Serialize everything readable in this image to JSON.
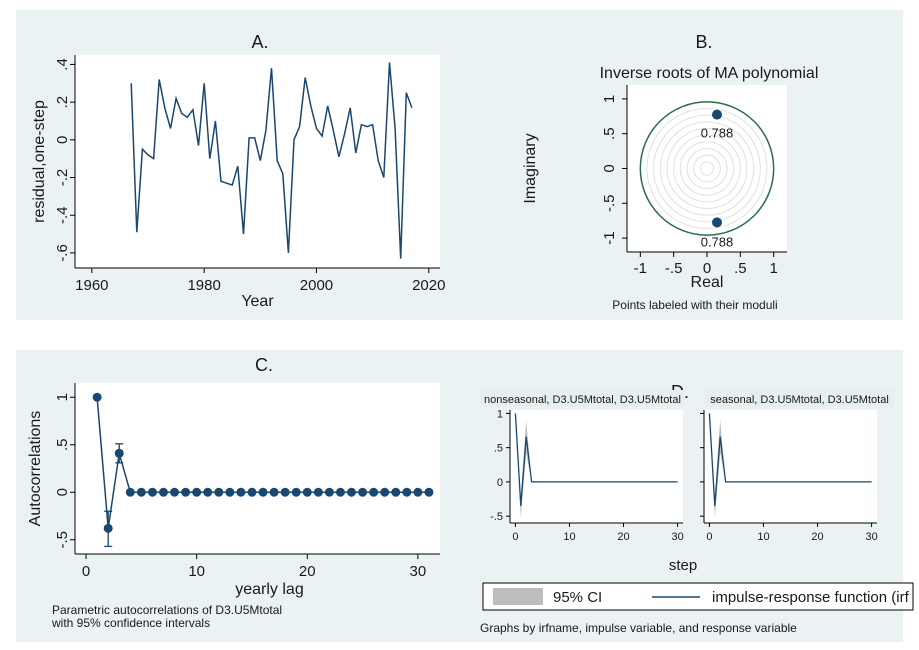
{
  "colors": {
    "panel_bg": "#eaf2f3",
    "plot_bg": "#ffffff",
    "line": "#1a476f",
    "marker": "#1a476f",
    "ci_band": "#bdbdbd",
    "circle": "#2e6b54",
    "rings": "#e0e0e0",
    "strip_bg": "#e6eef0"
  },
  "chart_data": [
    {
      "panel": "A.",
      "type": "line",
      "xlabel": "Year",
      "ylabel": "residual,one-step",
      "xlim": [
        1957,
        2022
      ],
      "ylim": [
        -0.68,
        0.45
      ],
      "xticks": [
        1960,
        1980,
        2000,
        2020
      ],
      "yticks": [
        -0.6,
        -0.4,
        -0.2,
        0,
        0.2,
        0.4
      ],
      "ytick_labels": [
        "-.6",
        "-.4",
        "-.2",
        "0",
        ".2",
        ".4"
      ],
      "x": [
        1967,
        1968,
        1969,
        1970,
        1971,
        1972,
        1973,
        1974,
        1975,
        1976,
        1977,
        1978,
        1979,
        1980,
        1981,
        1982,
        1983,
        1984,
        1985,
        1986,
        1987,
        1988,
        1989,
        1990,
        1991,
        1992,
        1993,
        1994,
        1995,
        1996,
        1997,
        1998,
        1999,
        2000,
        2001,
        2002,
        2003,
        2004,
        2005,
        2006,
        2007,
        2008,
        2009,
        2010,
        2011,
        2012,
        2013,
        2014,
        2015,
        2016,
        2017
      ],
      "y": [
        0.3,
        -0.49,
        -0.05,
        -0.08,
        -0.1,
        0.32,
        0.17,
        0.06,
        0.22,
        0.14,
        0.12,
        0.16,
        -0.03,
        0.3,
        -0.1,
        0.1,
        -0.22,
        -0.23,
        -0.24,
        -0.14,
        -0.5,
        0.01,
        0.01,
        -0.11,
        0.05,
        0.38,
        -0.11,
        -0.18,
        -0.6,
        0.0,
        0.07,
        0.33,
        0.18,
        0.06,
        0.02,
        0.18,
        0.05,
        -0.09,
        0.03,
        0.17,
        -0.07,
        0.08,
        0.07,
        0.08,
        -0.11,
        -0.2,
        0.41,
        0.06,
        -0.63,
        0.25,
        0.17
      ]
    },
    {
      "panel": "B.",
      "type": "scatter",
      "title": "Inverse roots of MA polynomial",
      "xlabel": "Real",
      "ylabel": "Imaginary",
      "note": "Points labeled with their moduli",
      "xlim": [
        -1.2,
        1.2
      ],
      "ylim": [
        -1.2,
        1.2
      ],
      "xticks": [
        -1,
        -0.5,
        0,
        0.5,
        1
      ],
      "xtick_labels": [
        "-1",
        "-.5",
        "0",
        ".5",
        "1"
      ],
      "yticks": [
        -1,
        -0.5,
        0,
        0.5,
        1
      ],
      "ytick_labels": [
        "-1",
        "-.5",
        "0",
        ".5",
        "1"
      ],
      "unit_circle_radius": 1,
      "points": [
        {
          "x": 0.15,
          "y": 0.774,
          "label": "0.788"
        },
        {
          "x": 0.15,
          "y": -0.774,
          "label": "0.788"
        }
      ]
    },
    {
      "panel": "C.",
      "type": "scatter",
      "xlabel": "yearly lag",
      "ylabel": "Autocorrelations",
      "note_lines": [
        "Parametric autocorrelations of D3.U5Mtotal",
        "with 95% confidence intervals"
      ],
      "xlim": [
        -1,
        32
      ],
      "ylim": [
        -0.65,
        1.15
      ],
      "xticks": [
        0,
        10,
        20,
        30
      ],
      "yticks": [
        -0.5,
        0,
        0.5,
        1
      ],
      "ytick_labels": [
        "-.5",
        "0",
        ".5",
        "1"
      ],
      "x": [
        1,
        2,
        3,
        4,
        5,
        6,
        7,
        8,
        9,
        10,
        11,
        12,
        13,
        14,
        15,
        16,
        17,
        18,
        19,
        20,
        21,
        22,
        23,
        24,
        25,
        26,
        27,
        28,
        29,
        30,
        31
      ],
      "y": [
        1,
        -0.38,
        0.41,
        0,
        0,
        0,
        0,
        0,
        0,
        0,
        0,
        0,
        0,
        0,
        0,
        0,
        0,
        0,
        0,
        0,
        0,
        0,
        0,
        0,
        0,
        0,
        0,
        0,
        0,
        0,
        0
      ],
      "ci": [
        {
          "x": 2,
          "low": -0.57,
          "high": -0.2
        },
        {
          "x": 3,
          "low": 0.31,
          "high": 0.51
        }
      ]
    },
    {
      "panel": "D.",
      "type": "line",
      "xlabel": "step",
      "subplots": [
        {
          "label": "nonseasonal, D3.U5Mtotal, D3.U5Mtotal",
          "show_yticks": true
        },
        {
          "label": "seasonal, D3.U5Mtotal, D3.U5Mtotal",
          "show_yticks": false
        }
      ],
      "xlim": [
        -1,
        31
      ],
      "ylim": [
        -0.6,
        1.05
      ],
      "xticks": [
        0,
        10,
        20,
        30
      ],
      "yticks": [
        -0.5,
        0,
        0.5,
        1
      ],
      "ytick_labels": [
        "-.5",
        "0",
        ".5",
        "1"
      ],
      "x": [
        0,
        1,
        2,
        3,
        4,
        5,
        10,
        15,
        20,
        25,
        30
      ],
      "irf": [
        1,
        -0.35,
        0.66,
        0,
        0,
        0,
        0,
        0,
        0,
        0,
        0
      ],
      "ci_low": [
        1,
        -0.52,
        0.42,
        0,
        0,
        0,
        0,
        0,
        0,
        0,
        0
      ],
      "ci_high": [
        1,
        -0.18,
        0.9,
        0,
        0,
        0,
        0,
        0,
        0,
        0,
        0
      ],
      "legend": [
        "95% CI",
        "impulse-response function (irf"
      ],
      "note": "Graphs by irfname, impulse variable, and response variable"
    }
  ]
}
